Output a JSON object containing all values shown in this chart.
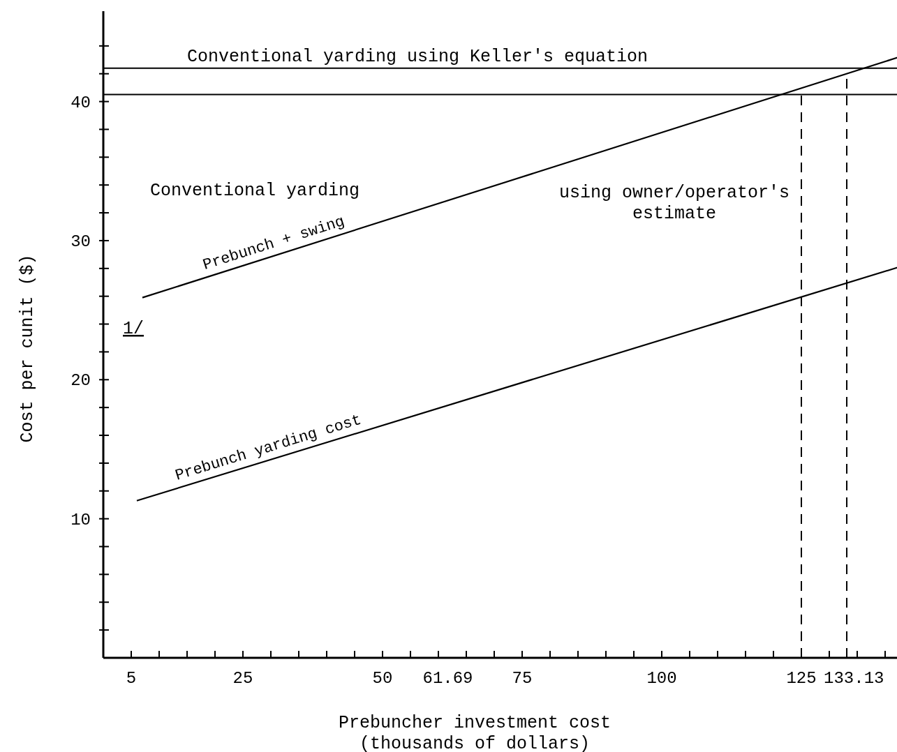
{
  "chart_data": {
    "type": "line",
    "xlabel": "Prebuncher investment cost\n(thousands of dollars)",
    "ylabel": "Cost per cunit ($)",
    "xlim": [
      0,
      142.5
    ],
    "ylim": [
      0,
      46.5
    ],
    "xticks": [
      {
        "value": 5,
        "label": "5"
      },
      {
        "value": 10,
        "label": null
      },
      {
        "value": 15,
        "label": null
      },
      {
        "value": 20,
        "label": null
      },
      {
        "value": 25,
        "label": "25"
      },
      {
        "value": 30,
        "label": null
      },
      {
        "value": 35,
        "label": null
      },
      {
        "value": 40,
        "label": null
      },
      {
        "value": 45,
        "label": null
      },
      {
        "value": 50,
        "label": "50"
      },
      {
        "value": 55,
        "label": null
      },
      {
        "value": 60,
        "label": null
      },
      {
        "value": 61.69,
        "label": "61.69"
      },
      {
        "value": 65,
        "label": null
      },
      {
        "value": 70,
        "label": null
      },
      {
        "value": 75,
        "label": "75"
      },
      {
        "value": 80,
        "label": null
      },
      {
        "value": 85,
        "label": null
      },
      {
        "value": 90,
        "label": null
      },
      {
        "value": 95,
        "label": null
      },
      {
        "value": 100,
        "label": "100"
      },
      {
        "value": 105,
        "label": null
      },
      {
        "value": 110,
        "label": null
      },
      {
        "value": 115,
        "label": null
      },
      {
        "value": 120,
        "label": null
      },
      {
        "value": 125,
        "label": "125"
      },
      {
        "value": 130,
        "label": null
      },
      {
        "value": 133.13,
        "label": "133.13"
      },
      {
        "value": 135,
        "label": null
      },
      {
        "value": 140,
        "label": null
      }
    ],
    "yticks": [
      {
        "value": 2,
        "label": null
      },
      {
        "value": 4,
        "label": null
      },
      {
        "value": 6,
        "label": null
      },
      {
        "value": 8,
        "label": null
      },
      10,
      {
        "value": 12,
        "label": null
      },
      {
        "value": 14,
        "label": null
      },
      {
        "value": 16,
        "label": null
      },
      {
        "value": 18,
        "label": null
      },
      20,
      {
        "value": 22,
        "label": null
      },
      {
        "value": 24,
        "label": null
      },
      {
        "value": 26,
        "label": null
      },
      {
        "value": 28,
        "label": null
      },
      30,
      {
        "value": 32,
        "label": null
      },
      {
        "value": 34,
        "label": null
      },
      {
        "value": 36,
        "label": null
      },
      {
        "value": 38,
        "label": null
      },
      40,
      {
        "value": 42,
        "label": null
      },
      {
        "value": 44,
        "label": null
      }
    ],
    "series": [
      {
        "name": "Prebunch + swing",
        "color": "#000000",
        "x": [
          7,
          142.5
        ],
        "values": [
          25.9,
          43.2
        ]
      },
      {
        "name": "Prebunch yarding cost",
        "color": "#000000",
        "x": [
          6,
          142.5
        ],
        "values": [
          11.3,
          28.1
        ]
      }
    ],
    "ref_lines": [
      {
        "axis": "y",
        "value": 42.4,
        "label": "Conventional yarding using Keller's equation",
        "color": "#000000",
        "line_style": "solid"
      },
      {
        "axis": "y",
        "value": 40.5,
        "label": null,
        "color": "#000000",
        "line_style": "solid"
      },
      {
        "axis": "x",
        "value": 125,
        "label": null,
        "color": "#000000",
        "line_style": "dashed"
      },
      {
        "axis": "x",
        "value": 133.13,
        "label": null,
        "color": "#000000",
        "line_style": "dashed"
      }
    ],
    "annotations": [
      "Conventional yarding",
      "using owner/operator's\nestimate",
      "1/"
    ],
    "grid": false,
    "marker": "none",
    "line_style": "solid"
  }
}
